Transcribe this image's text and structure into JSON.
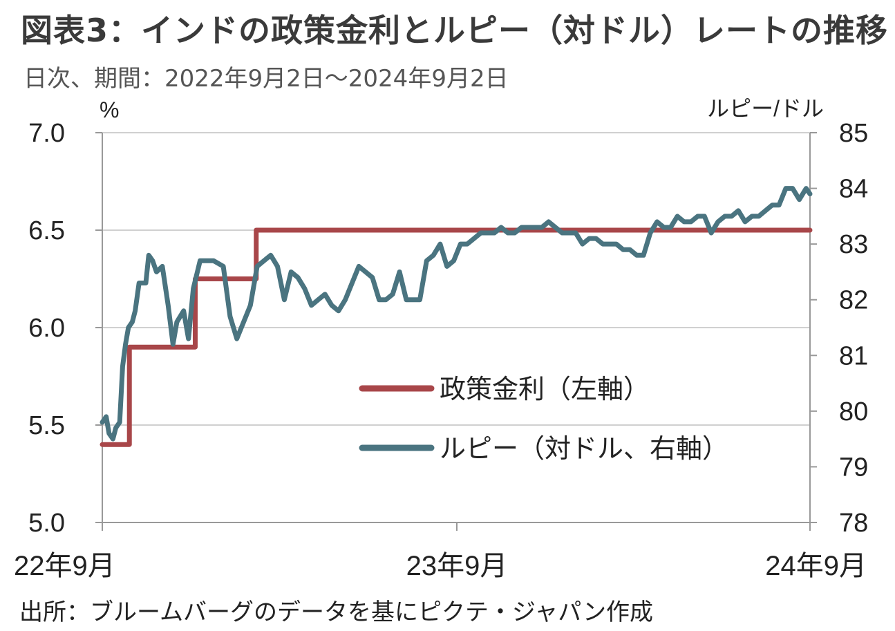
{
  "header": {
    "title": "図表3：インドの政策金利とルピー（対ドル）レートの推移",
    "subtitle": "日次、期間：2022年9月2日～2024年9月2日"
  },
  "footer": {
    "source": "出所：ブルームバーグのデータを基にピクテ・ジャパン作成"
  },
  "chart_data": {
    "type": "line",
    "title": "",
    "xlabel": "",
    "x_tick_labels": [
      "22年9月",
      "23年9月",
      "24年9月"
    ],
    "x_range": [
      "2022-09-02",
      "2024-09-02"
    ],
    "y_left": {
      "unit": "%",
      "ylim": [
        5.0,
        7.0
      ],
      "ticks": [
        "5.0",
        "5.5",
        "6.0",
        "6.5",
        "7.0"
      ]
    },
    "y_right": {
      "unit": "ルピー/ドル",
      "ylim": [
        78,
        85
      ],
      "ticks": [
        "78",
        "79",
        "80",
        "81",
        "82",
        "83",
        "84",
        "85"
      ]
    },
    "grid": true,
    "legend_placement": "center-right",
    "colors": {
      "policy_rate": "#a84649",
      "rupee": "#4a7480",
      "grid": "#d0d0d0",
      "axis": "#999999"
    },
    "series": [
      {
        "name": "政策金利（左軸）",
        "axis": "left",
        "step": true,
        "points": [
          [
            "2022-09-02",
            5.4
          ],
          [
            "2022-09-30",
            5.9
          ],
          [
            "2022-12-07",
            6.25
          ],
          [
            "2023-02-08",
            6.5
          ],
          [
            "2024-09-02",
            6.5
          ]
        ]
      },
      {
        "name": "ルピー（対ドル、右軸）",
        "axis": "right",
        "points": [
          [
            "2022-09-02",
            79.8
          ],
          [
            "2022-09-06",
            79.9
          ],
          [
            "2022-09-09",
            79.6
          ],
          [
            "2022-09-13",
            79.5
          ],
          [
            "2022-09-16",
            79.7
          ],
          [
            "2022-09-20",
            79.8
          ],
          [
            "2022-09-23",
            80.8
          ],
          [
            "2022-09-26",
            81.2
          ],
          [
            "2022-09-29",
            81.5
          ],
          [
            "2022-10-03",
            81.6
          ],
          [
            "2022-10-06",
            81.8
          ],
          [
            "2022-10-10",
            82.3
          ],
          [
            "2022-10-13",
            82.3
          ],
          [
            "2022-10-17",
            82.3
          ],
          [
            "2022-10-20",
            82.8
          ],
          [
            "2022-10-24",
            82.7
          ],
          [
            "2022-10-28",
            82.5
          ],
          [
            "2022-11-03",
            82.6
          ],
          [
            "2022-11-09",
            81.9
          ],
          [
            "2022-11-14",
            81.2
          ],
          [
            "2022-11-18",
            81.6
          ],
          [
            "2022-11-25",
            81.8
          ],
          [
            "2022-11-30",
            81.3
          ],
          [
            "2022-12-05",
            82.2
          ],
          [
            "2022-12-12",
            82.7
          ],
          [
            "2022-12-19",
            82.7
          ],
          [
            "2022-12-26",
            82.7
          ],
          [
            "2023-01-05",
            82.6
          ],
          [
            "2023-01-12",
            81.7
          ],
          [
            "2023-01-19",
            81.3
          ],
          [
            "2023-01-26",
            81.6
          ],
          [
            "2023-02-02",
            81.9
          ],
          [
            "2023-02-09",
            82.6
          ],
          [
            "2023-02-16",
            82.7
          ],
          [
            "2023-02-23",
            82.8
          ],
          [
            "2023-03-02",
            82.6
          ],
          [
            "2023-03-09",
            82.0
          ],
          [
            "2023-03-16",
            82.5
          ],
          [
            "2023-03-23",
            82.4
          ],
          [
            "2023-03-30",
            82.2
          ],
          [
            "2023-04-06",
            81.9
          ],
          [
            "2023-04-13",
            82.0
          ],
          [
            "2023-04-20",
            82.1
          ],
          [
            "2023-04-27",
            81.9
          ],
          [
            "2023-05-04",
            81.8
          ],
          [
            "2023-05-11",
            82.0
          ],
          [
            "2023-05-18",
            82.3
          ],
          [
            "2023-05-25",
            82.6
          ],
          [
            "2023-06-01",
            82.5
          ],
          [
            "2023-06-08",
            82.4
          ],
          [
            "2023-06-15",
            82.0
          ],
          [
            "2023-06-22",
            82.0
          ],
          [
            "2023-06-29",
            82.1
          ],
          [
            "2023-07-06",
            82.5
          ],
          [
            "2023-07-13",
            82.0
          ],
          [
            "2023-07-20",
            82.0
          ],
          [
            "2023-07-27",
            82.0
          ],
          [
            "2023-08-03",
            82.7
          ],
          [
            "2023-08-10",
            82.8
          ],
          [
            "2023-08-17",
            83.0
          ],
          [
            "2023-08-24",
            82.6
          ],
          [
            "2023-08-31",
            82.7
          ],
          [
            "2023-09-07",
            83.0
          ],
          [
            "2023-09-14",
            83.0
          ],
          [
            "2023-09-21",
            83.1
          ],
          [
            "2023-09-28",
            83.2
          ],
          [
            "2023-10-05",
            83.2
          ],
          [
            "2023-10-12",
            83.2
          ],
          [
            "2023-10-19",
            83.3
          ],
          [
            "2023-10-26",
            83.2
          ],
          [
            "2023-11-02",
            83.2
          ],
          [
            "2023-11-09",
            83.3
          ],
          [
            "2023-11-16",
            83.3
          ],
          [
            "2023-11-23",
            83.3
          ],
          [
            "2023-11-30",
            83.3
          ],
          [
            "2023-12-07",
            83.4
          ],
          [
            "2023-12-14",
            83.3
          ],
          [
            "2023-12-21",
            83.2
          ],
          [
            "2023-12-28",
            83.2
          ],
          [
            "2024-01-04",
            83.2
          ],
          [
            "2024-01-11",
            83.0
          ],
          [
            "2024-01-18",
            83.1
          ],
          [
            "2024-01-25",
            83.1
          ],
          [
            "2024-02-01",
            83.0
          ],
          [
            "2024-02-08",
            83.0
          ],
          [
            "2024-02-15",
            83.0
          ],
          [
            "2024-02-22",
            82.9
          ],
          [
            "2024-02-29",
            82.9
          ],
          [
            "2024-03-07",
            82.8
          ],
          [
            "2024-03-14",
            82.8
          ],
          [
            "2024-03-21",
            83.2
          ],
          [
            "2024-03-28",
            83.4
          ],
          [
            "2024-04-04",
            83.3
          ],
          [
            "2024-04-11",
            83.3
          ],
          [
            "2024-04-18",
            83.5
          ],
          [
            "2024-04-25",
            83.4
          ],
          [
            "2024-05-02",
            83.4
          ],
          [
            "2024-05-09",
            83.5
          ],
          [
            "2024-05-16",
            83.5
          ],
          [
            "2024-05-23",
            83.2
          ],
          [
            "2024-05-30",
            83.4
          ],
          [
            "2024-06-06",
            83.5
          ],
          [
            "2024-06-13",
            83.5
          ],
          [
            "2024-06-20",
            83.6
          ],
          [
            "2024-06-27",
            83.4
          ],
          [
            "2024-07-04",
            83.5
          ],
          [
            "2024-07-11",
            83.5
          ],
          [
            "2024-07-18",
            83.6
          ],
          [
            "2024-07-25",
            83.7
          ],
          [
            "2024-08-01",
            83.7
          ],
          [
            "2024-08-08",
            84.0
          ],
          [
            "2024-08-15",
            84.0
          ],
          [
            "2024-08-22",
            83.8
          ],
          [
            "2024-08-29",
            84.0
          ],
          [
            "2024-09-02",
            83.9
          ]
        ]
      }
    ]
  }
}
